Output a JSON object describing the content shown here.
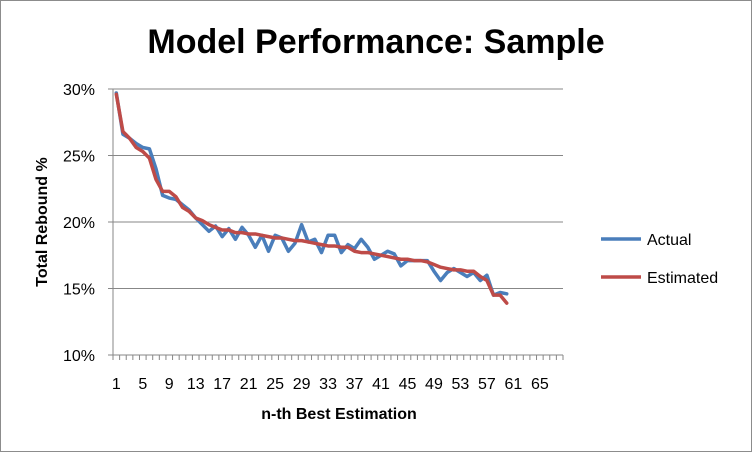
{
  "chart_data": {
    "type": "line",
    "title": "Model Performance: Sample",
    "xlabel": "n-th Best Estimation",
    "ylabel": "Total Rebound %",
    "xlim": [
      1,
      68
    ],
    "ylim": [
      0.1,
      0.3
    ],
    "x_tick_labels": [
      "1",
      "5",
      "9",
      "13",
      "17",
      "21",
      "25",
      "29",
      "33",
      "37",
      "41",
      "45",
      "49",
      "53",
      "57",
      "61",
      "65"
    ],
    "y_tick_labels": [
      "10%",
      "15%",
      "20%",
      "25%",
      "30%"
    ],
    "y_ticks": [
      0.1,
      0.15,
      0.2,
      0.25,
      0.3
    ],
    "grid": {
      "horizontal": true,
      "vertical": false
    },
    "legend_position": "right",
    "series": [
      {
        "name": "Actual",
        "color": "#4a7ebb",
        "x": [
          1,
          2,
          3,
          4,
          5,
          6,
          7,
          8,
          9,
          10,
          11,
          12,
          13,
          14,
          15,
          16,
          17,
          18,
          19,
          20,
          21,
          22,
          23,
          24,
          25,
          26,
          27,
          28,
          29,
          30,
          31,
          32,
          33,
          34,
          35,
          36,
          37,
          38,
          39,
          40,
          41,
          42,
          43,
          44,
          45,
          46,
          47,
          48,
          49,
          50,
          51,
          52,
          53,
          54,
          55,
          56,
          57,
          58,
          59,
          60
        ],
        "values": [
          0.297,
          0.266,
          0.263,
          0.259,
          0.256,
          0.255,
          0.24,
          0.22,
          0.218,
          0.217,
          0.213,
          0.209,
          0.203,
          0.198,
          0.193,
          0.197,
          0.189,
          0.195,
          0.187,
          0.196,
          0.19,
          0.181,
          0.19,
          0.178,
          0.19,
          0.188,
          0.178,
          0.184,
          0.198,
          0.185,
          0.187,
          0.177,
          0.19,
          0.19,
          0.177,
          0.183,
          0.18,
          0.187,
          0.181,
          0.172,
          0.175,
          0.178,
          0.176,
          0.167,
          0.171,
          0.171,
          0.171,
          0.171,
          0.163,
          0.156,
          0.162,
          0.165,
          0.162,
          0.159,
          0.162,
          0.156,
          0.16,
          0.145,
          0.147,
          0.146
        ]
      },
      {
        "name": "Estimated",
        "color": "#be4b48",
        "x": [
          1,
          2,
          3,
          4,
          5,
          6,
          7,
          8,
          9,
          10,
          11,
          12,
          13,
          14,
          15,
          16,
          17,
          18,
          19,
          20,
          21,
          22,
          23,
          24,
          25,
          26,
          27,
          28,
          29,
          30,
          31,
          32,
          33,
          34,
          35,
          36,
          37,
          38,
          39,
          40,
          41,
          42,
          43,
          44,
          45,
          46,
          47,
          48,
          49,
          50,
          51,
          52,
          53,
          54,
          55,
          56,
          57,
          58,
          59,
          60
        ],
        "values": [
          0.296,
          0.268,
          0.263,
          0.256,
          0.253,
          0.248,
          0.232,
          0.223,
          0.223,
          0.219,
          0.211,
          0.208,
          0.203,
          0.201,
          0.198,
          0.196,
          0.194,
          0.194,
          0.192,
          0.192,
          0.191,
          0.191,
          0.19,
          0.189,
          0.188,
          0.188,
          0.187,
          0.186,
          0.186,
          0.185,
          0.184,
          0.183,
          0.182,
          0.182,
          0.181,
          0.181,
          0.178,
          0.177,
          0.177,
          0.176,
          0.175,
          0.174,
          0.173,
          0.172,
          0.172,
          0.171,
          0.171,
          0.17,
          0.168,
          0.166,
          0.165,
          0.164,
          0.164,
          0.163,
          0.163,
          0.159,
          0.156,
          0.145,
          0.145,
          0.139
        ]
      }
    ]
  }
}
